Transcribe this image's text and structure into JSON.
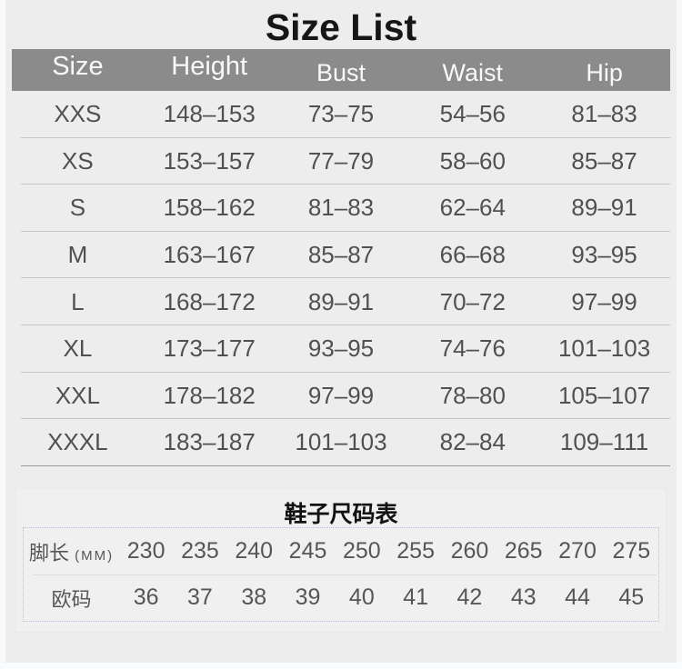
{
  "page": {
    "title": "Size List"
  },
  "size_table": {
    "columns": [
      "Size",
      "Height",
      "Bust",
      "Waist",
      "Hip"
    ],
    "rows": [
      [
        "XXS",
        "148–153",
        "73–75",
        "54–56",
        "81–83"
      ],
      [
        "XS",
        "153–157",
        "77–79",
        "58–60",
        "85–87"
      ],
      [
        "S",
        "158–162",
        "81–83",
        "62–64",
        "89–91"
      ],
      [
        "M",
        "163–167",
        "85–87",
        "66–68",
        "93–95"
      ],
      [
        "L",
        "168–172",
        "89–91",
        "70–72",
        "97–99"
      ],
      [
        "XL",
        "173–177",
        "93–95",
        "74–76",
        "101–103"
      ],
      [
        "XXL",
        "178–182",
        "97–99",
        "78–80",
        "105–107"
      ],
      [
        "XXXL",
        "183–187",
        "101–103",
        "82–84",
        "109–111"
      ]
    ]
  },
  "shoe_table": {
    "title": "鞋子尺码表",
    "foot_length_label": "脚长",
    "foot_length_unit": "(MM)",
    "foot_length_mm": [
      "230",
      "235",
      "240",
      "245",
      "250",
      "255",
      "260",
      "265",
      "270",
      "275"
    ],
    "eu_size_label": "欧码",
    "eu_sizes": [
      "36",
      "37",
      "38",
      "39",
      "40",
      "41",
      "42",
      "43",
      "44",
      "45"
    ]
  },
  "colors": {
    "background": "#ededee",
    "title_text": "#161616",
    "header_bar": "#8b8b8b",
    "header_text": "#f8f8f8",
    "body_text": "#505050",
    "row_divider": "#c7c7c7",
    "last_row_divider": "#9b9b9b",
    "shoe_panel_bg": "#f0f0f1",
    "dotted_border": "#b9c1d2"
  }
}
